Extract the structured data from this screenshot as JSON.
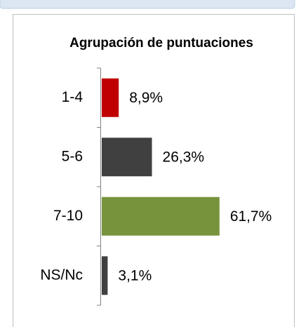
{
  "chart_data": {
    "type": "bar",
    "orientation": "horizontal",
    "title": "Agrupación de puntuaciones",
    "categories": [
      "1-4",
      "5-6",
      "7-10",
      "NS/Nc"
    ],
    "values": [
      8.9,
      26.3,
      61.7,
      3.1
    ],
    "value_labels": [
      "8,9%",
      "26,3%",
      "61,7%",
      "3,1%"
    ],
    "colors": [
      "#c00000",
      "#404040",
      "#77933c",
      "#404040"
    ],
    "xlim": [
      0,
      100
    ]
  }
}
